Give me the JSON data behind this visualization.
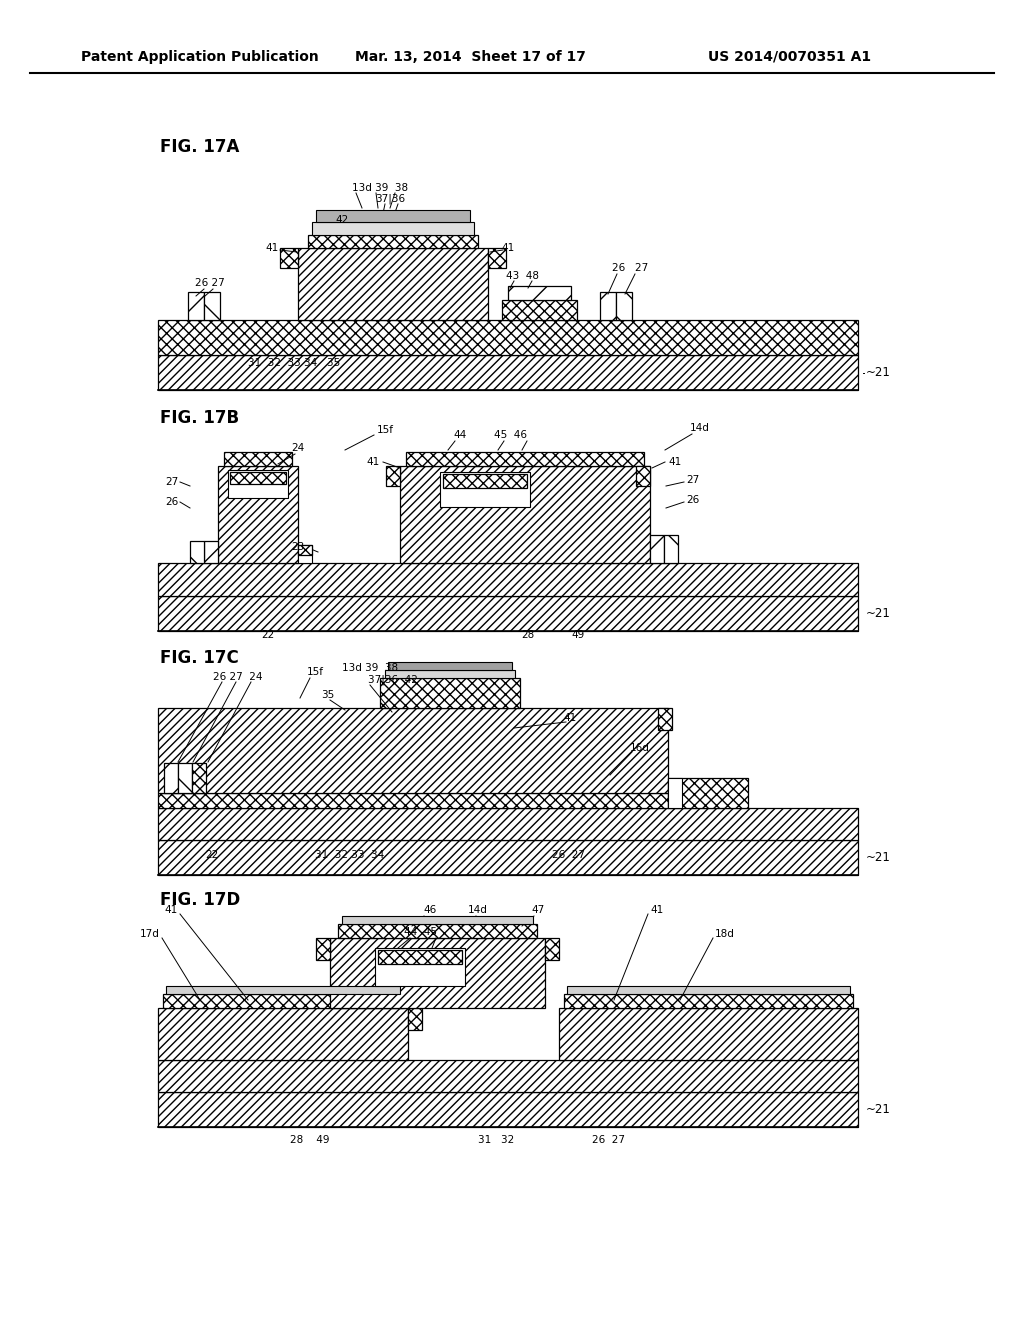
{
  "bg": "#ffffff",
  "header1": "Patent Application Publication",
  "header2": "Mar. 13, 2014  Sheet 17 of 17",
  "header3": "US 2014/0070351 A1",
  "figs": [
    "FIG. 17A",
    "FIG. 17B",
    "FIG. 17C",
    "FIG. 17D"
  ]
}
